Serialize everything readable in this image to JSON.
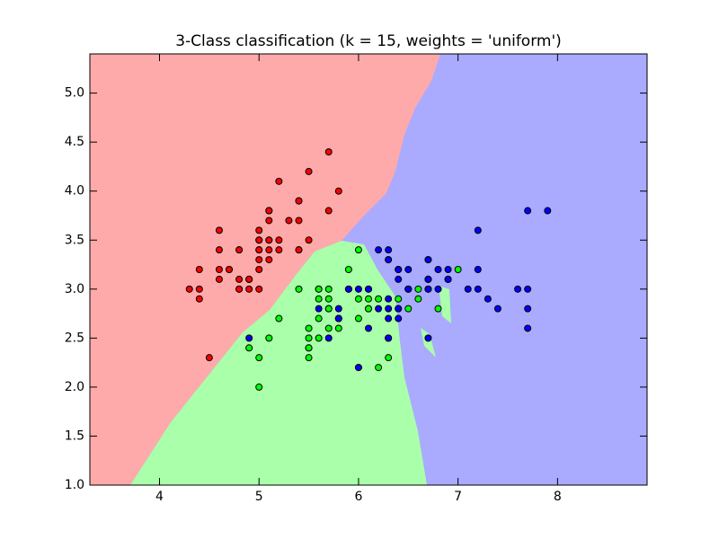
{
  "chart_data": {
    "type": "scatter",
    "title": "3-Class classification (k = 15, weights = 'uniform')",
    "xlim": [
      3.3,
      8.9
    ],
    "ylim": [
      1.0,
      5.4
    ],
    "xticks": [
      4,
      5,
      6,
      7,
      8
    ],
    "yticks": [
      {
        "value": 1.0,
        "label": "1.0"
      },
      {
        "value": 1.5,
        "label": "1.5"
      },
      {
        "value": 2.0,
        "label": "2.0"
      },
      {
        "value": 2.5,
        "label": "2.5"
      },
      {
        "value": 3.0,
        "label": "3.0"
      },
      {
        "value": 3.5,
        "label": "3.5"
      },
      {
        "value": 4.0,
        "label": "4.0"
      },
      {
        "value": 4.5,
        "label": "4.5"
      },
      {
        "value": 5.0,
        "label": "5.0"
      }
    ],
    "series": [
      {
        "color": "#ff0000",
        "x": [
          5.1,
          4.9,
          4.7,
          4.6,
          5.0,
          5.4,
          4.6,
          5.0,
          4.4,
          4.9,
          5.4,
          4.8,
          4.8,
          4.3,
          5.8,
          5.7,
          5.4,
          5.1,
          5.7,
          5.1,
          5.4,
          5.1,
          4.6,
          5.1,
          4.8,
          5.0,
          5.0,
          5.2,
          5.2,
          4.7,
          4.8,
          5.4,
          5.2,
          5.5,
          4.9,
          5.0,
          5.5,
          4.9,
          4.4,
          5.1,
          5.0,
          4.5,
          4.4,
          5.0,
          5.1,
          4.8,
          5.1,
          4.6,
          5.3,
          5.0
        ],
        "y": [
          3.5,
          3.0,
          3.2,
          3.1,
          3.6,
          3.9,
          3.4,
          3.4,
          2.9,
          3.1,
          3.7,
          3.4,
          3.0,
          3.0,
          4.0,
          4.4,
          3.9,
          3.5,
          3.8,
          3.8,
          3.4,
          3.7,
          3.6,
          3.3,
          3.4,
          3.0,
          3.4,
          3.5,
          3.4,
          3.2,
          3.1,
          3.4,
          4.1,
          4.2,
          3.1,
          3.2,
          3.5,
          3.1,
          3.0,
          3.4,
          3.5,
          2.3,
          3.2,
          3.5,
          3.8,
          3.0,
          3.8,
          3.2,
          3.7,
          3.3
        ]
      },
      {
        "color": "#00ff00",
        "x": [
          7.0,
          6.4,
          6.9,
          5.5,
          6.5,
          5.7,
          6.3,
          4.9,
          6.6,
          5.2,
          5.0,
          5.9,
          6.0,
          6.1,
          5.6,
          6.7,
          5.6,
          5.8,
          6.2,
          5.6,
          5.9,
          6.1,
          6.3,
          6.1,
          6.4,
          6.6,
          6.8,
          6.7,
          6.0,
          5.7,
          5.5,
          5.5,
          5.8,
          6.0,
          5.4,
          6.0,
          6.7,
          6.3,
          5.6,
          5.5,
          5.5,
          6.1,
          5.8,
          5.0,
          5.6,
          5.7,
          5.7,
          6.2,
          5.1,
          5.7
        ],
        "y": [
          3.2,
          3.2,
          3.1,
          2.3,
          2.8,
          2.8,
          3.3,
          2.4,
          2.9,
          2.7,
          2.0,
          3.0,
          2.2,
          2.9,
          2.9,
          3.1,
          3.0,
          2.7,
          2.2,
          2.5,
          3.2,
          2.8,
          2.5,
          2.8,
          2.9,
          3.0,
          2.8,
          3.0,
          2.9,
          2.6,
          2.4,
          2.4,
          2.7,
          2.7,
          3.0,
          3.4,
          3.1,
          2.3,
          3.0,
          2.5,
          2.6,
          3.0,
          2.6,
          2.3,
          2.7,
          3.0,
          2.9,
          2.9,
          2.5,
          2.8
        ]
      },
      {
        "color": "#0000ff",
        "x": [
          6.3,
          5.8,
          7.1,
          6.3,
          6.5,
          7.6,
          4.9,
          7.3,
          6.7,
          7.2,
          6.5,
          6.4,
          6.8,
          5.7,
          5.8,
          6.4,
          6.5,
          7.7,
          7.7,
          6.0,
          6.9,
          5.6,
          7.7,
          6.3,
          6.7,
          7.2,
          6.2,
          6.1,
          6.4,
          7.2,
          7.4,
          7.9,
          6.4,
          6.3,
          6.1,
          7.7,
          6.3,
          6.4,
          6.0,
          6.9,
          6.7,
          6.9,
          5.8,
          6.8,
          6.7,
          6.7,
          6.3,
          6.5,
          6.2,
          5.9
        ],
        "y": [
          3.3,
          2.7,
          3.0,
          2.9,
          3.0,
          3.0,
          2.5,
          2.9,
          2.5,
          3.6,
          3.2,
          2.7,
          3.0,
          2.5,
          2.8,
          3.2,
          3.0,
          3.8,
          2.6,
          2.2,
          3.2,
          2.8,
          2.8,
          2.7,
          3.3,
          3.2,
          2.8,
          3.0,
          2.8,
          3.0,
          2.8,
          3.8,
          2.8,
          2.8,
          2.6,
          3.0,
          3.4,
          3.1,
          3.0,
          3.1,
          3.1,
          3.1,
          2.7,
          3.2,
          3.3,
          3.0,
          2.5,
          3.0,
          3.4,
          3.0
        ]
      }
    ]
  }
}
